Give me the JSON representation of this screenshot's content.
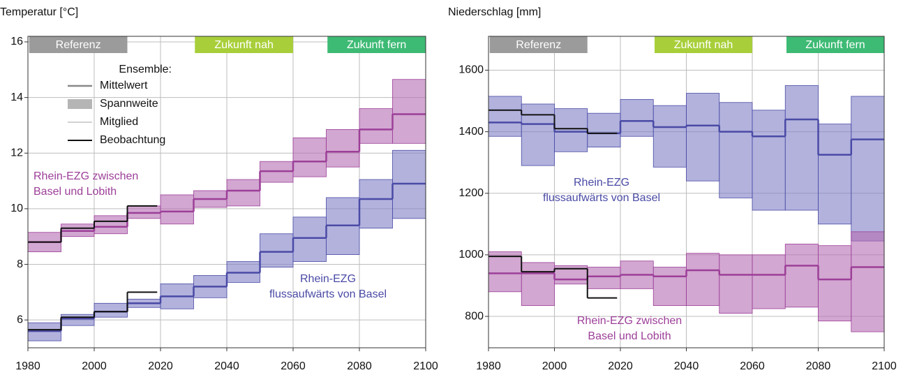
{
  "chart_data": [
    {
      "type": "step",
      "title": "Temperatur [°C]",
      "xlim": [
        1980,
        2100
      ],
      "xticks": [
        1980,
        2000,
        2020,
        2040,
        2060,
        2080,
        2100
      ],
      "ylim": [
        5.0,
        16.2
      ],
      "yticks": [
        6,
        8,
        10,
        12,
        14,
        16
      ],
      "grid": true,
      "periods": [
        {
          "label": "Referenz",
          "range": [
            1981,
            2010
          ],
          "color": "#9b9b9b"
        },
        {
          "label": "Zukunft nah",
          "range": [
            2031,
            2060
          ],
          "color": "#a8cf3a"
        },
        {
          "label": "Zukunft fern",
          "range": [
            2071,
            2100
          ],
          "color": "#3dba74"
        }
      ],
      "legend": {
        "title": "Ensemble:",
        "entries": [
          "Mittelwert",
          "Spannweite",
          "Mitglied",
          "Beobachtung"
        ]
      },
      "x": [
        1980,
        1990,
        2000,
        2010,
        2020,
        2030,
        2040,
        2050,
        2060,
        2070,
        2080,
        2090
      ],
      "obs_bins": [
        1980,
        1990,
        2000,
        2010,
        2019
      ],
      "series": [
        {
          "label": [
            "Rhein-EZG zwischen",
            "Basel und Lobith"
          ],
          "color": "#9c3f98",
          "fill": "#b46db2",
          "mean": [
            8.8,
            9.2,
            9.35,
            9.85,
            9.9,
            10.35,
            10.65,
            11.35,
            11.7,
            12.05,
            12.85,
            13.4
          ],
          "min": [
            8.45,
            9.0,
            9.1,
            9.65,
            9.45,
            10.05,
            10.1,
            10.95,
            11.15,
            11.5,
            12.35,
            12.35
          ],
          "max": [
            9.15,
            9.45,
            9.75,
            10.1,
            10.5,
            10.65,
            11.05,
            11.7,
            12.55,
            12.85,
            13.6,
            14.65
          ],
          "observed": [
            8.8,
            9.3,
            9.55,
            10.1
          ]
        },
        {
          "label": [
            "Rhein-EZG",
            "flussaufwärts von Basel"
          ],
          "color": "#4a4aa6",
          "fill": "#7f7fc6",
          "mean": [
            5.6,
            6.05,
            6.3,
            6.6,
            6.85,
            7.2,
            7.7,
            8.45,
            8.95,
            9.4,
            10.35,
            10.9
          ],
          "min": [
            5.25,
            5.8,
            6.1,
            6.45,
            6.4,
            6.8,
            7.35,
            7.9,
            8.1,
            8.35,
            9.3,
            9.65
          ],
          "max": [
            5.9,
            6.2,
            6.6,
            6.75,
            7.3,
            7.6,
            8.1,
            9.1,
            9.7,
            10.4,
            11.05,
            12.1
          ],
          "observed": [
            5.65,
            6.1,
            6.3,
            7.0
          ]
        }
      ]
    },
    {
      "type": "step",
      "title": "Niederschlag [mm]",
      "xlim": [
        1980,
        2100
      ],
      "xticks": [
        1980,
        2000,
        2020,
        2040,
        2060,
        2080,
        2100
      ],
      "ylim": [
        698,
        1710
      ],
      "yticks": [
        800,
        1000,
        1200,
        1400,
        1600
      ],
      "grid": true,
      "periods": [
        {
          "label": "Referenz",
          "range": [
            1981,
            2010
          ],
          "color": "#9b9b9b"
        },
        {
          "label": "Zukunft nah",
          "range": [
            2031,
            2060
          ],
          "color": "#a8cf3a"
        },
        {
          "label": "Zukunft fern",
          "range": [
            2071,
            2100
          ],
          "color": "#3dba74"
        }
      ],
      "x": [
        1980,
        1990,
        2000,
        2010,
        2020,
        2030,
        2040,
        2050,
        2060,
        2070,
        2080,
        2090
      ],
      "obs_bins": [
        1980,
        1990,
        2000,
        2010,
        2019
      ],
      "series": [
        {
          "label": [
            "Rhein-EZG",
            "flussaufwärts von Basel"
          ],
          "color": "#4a4aa6",
          "fill": "#7f7fc6",
          "mean": [
            1430,
            1425,
            1400,
            1395,
            1435,
            1415,
            1420,
            1400,
            1385,
            1440,
            1325,
            1375
          ],
          "min": [
            1385,
            1290,
            1335,
            1350,
            1385,
            1285,
            1240,
            1185,
            1145,
            1145,
            1100,
            1045
          ],
          "max": [
            1515,
            1490,
            1475,
            1460,
            1505,
            1485,
            1525,
            1495,
            1470,
            1550,
            1425,
            1515
          ],
          "observed": [
            1470,
            1455,
            1410,
            1395
          ]
        },
        {
          "label": [
            "Rhein-EZG zwischen",
            "Basel und Lobith"
          ],
          "color": "#9c3f98",
          "fill": "#b46db2",
          "mean": [
            940,
            940,
            920,
            930,
            935,
            930,
            950,
            935,
            935,
            965,
            920,
            960
          ],
          "min": [
            880,
            835,
            905,
            890,
            890,
            835,
            835,
            810,
            825,
            830,
            785,
            750
          ],
          "max": [
            1010,
            975,
            965,
            960,
            980,
            960,
            1005,
            1000,
            1000,
            1035,
            1030,
            1075
          ],
          "observed": [
            995,
            945,
            955,
            860
          ]
        }
      ]
    }
  ]
}
